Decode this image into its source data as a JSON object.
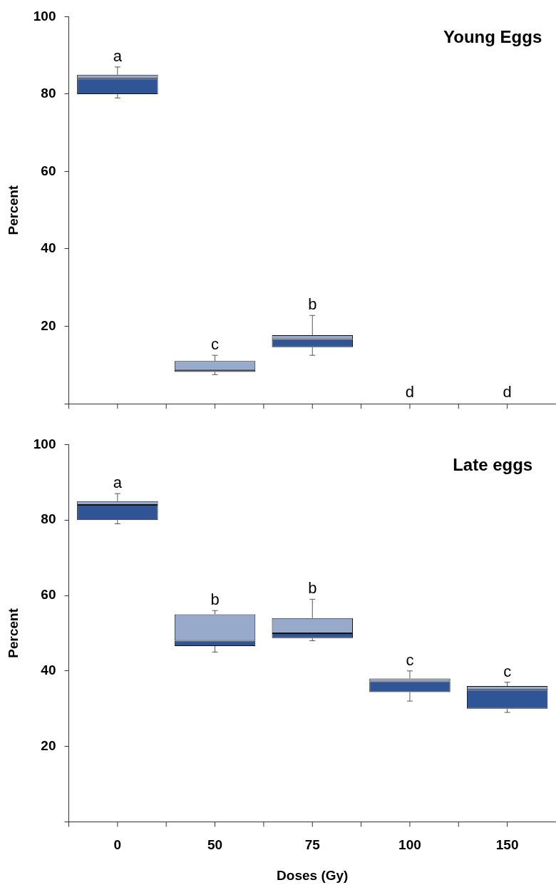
{
  "chart_data": [
    {
      "type": "box",
      "title": "Young Eggs",
      "ylabel": "Percent",
      "categories": [
        "0",
        "50",
        "75",
        "100",
        "150"
      ],
      "ylim": [
        0,
        100
      ],
      "yticks": [
        {
          "value": 0,
          "label": null
        },
        20,
        40,
        60,
        80,
        100
      ],
      "tick_labels": "y",
      "series": [
        {
          "color": "#2f5597",
          "boxes": [
            {
              "low": 79,
              "q1": 80,
              "median": 84,
              "q3": 85,
              "high": 87
            },
            {
              "low": 7.5,
              "q1": 8.2,
              "median": 8.7,
              "q3": 11,
              "high": 12.5
            },
            {
              "low": 12.5,
              "q1": 14.6,
              "median": 16.7,
              "q3": 17.7,
              "high": 22.8
            },
            null,
            null
          ]
        }
      ],
      "annotations": [
        "a",
        "c",
        "b",
        "d",
        "d"
      ]
    },
    {
      "type": "box",
      "title": "Late eggs",
      "xlabel": "Doses (Gy)",
      "ylabel": "Percent",
      "categories": [
        "0",
        "50",
        "75",
        "100",
        "150"
      ],
      "ylim": [
        0,
        100
      ],
      "yticks": [
        {
          "value": 0,
          "label": null
        },
        20,
        40,
        60,
        80,
        100
      ],
      "series": [
        {
          "color": "#2f5597",
          "boxes": [
            {
              "low": 79,
              "q1": 80,
              "median": 84,
              "q3": 85,
              "high": 87
            },
            {
              "low": 45,
              "q1": 46.6,
              "median": 48,
              "q3": 55,
              "high": 56
            },
            {
              "low": 48,
              "q1": 48.7,
              "median": 50,
              "q3": 54,
              "high": 59
            },
            {
              "low": 32,
              "q1": 34.4,
              "median": 37.2,
              "q3": 38,
              "high": 40
            },
            {
              "low": 29,
              "q1": 30,
              "median": 35,
              "q3": 36,
              "high": 37
            }
          ]
        }
      ],
      "annotations": [
        "a",
        "b",
        "b",
        "c",
        "c"
      ]
    }
  ]
}
